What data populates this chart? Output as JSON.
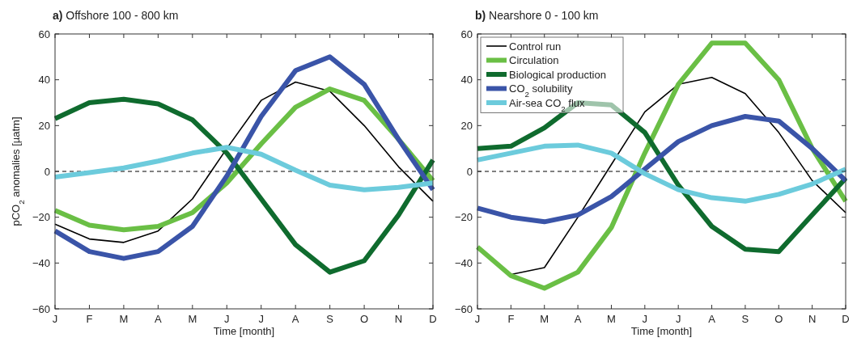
{
  "chart_data": [
    {
      "type": "line",
      "title": "a) Offshore 100 - 800 km",
      "xlabel": "Time [month]",
      "ylabel": "pCO$_{2}$ anomalies [µatm]",
      "categories": [
        "J",
        "F",
        "M",
        "A",
        "M",
        "J",
        "J",
        "A",
        "S",
        "O",
        "N",
        "D"
      ],
      "ylim": [
        -60,
        60
      ],
      "yticks": [
        -60,
        -40,
        -20,
        0,
        20,
        40,
        60
      ],
      "legend": false,
      "ref_lines": [
        {
          "axis": "y",
          "value": 0,
          "color": "#808080",
          "line_style": "dashed"
        }
      ],
      "series": [
        {
          "color": "#000000",
          "values": [
            -23,
            -29.5,
            -31,
            -26,
            -12,
            10,
            31,
            39,
            35,
            20,
            2,
            -13
          ]
        },
        {
          "color": "#6abf45",
          "values": [
            -17,
            -23.5,
            -25.5,
            -24,
            -18,
            -5,
            12,
            28,
            36,
            31,
            14,
            -4
          ]
        },
        {
          "color": "#0f6b2e",
          "values": [
            23,
            30,
            31.5,
            29.5,
            22.5,
            8,
            -12,
            -32,
            -44,
            -39,
            -19,
            5
          ]
        },
        {
          "color": "#3a54a8",
          "values": [
            -26,
            -35,
            -38,
            -35,
            -24,
            -2,
            24,
            44,
            50,
            38,
            14,
            -8
          ]
        },
        {
          "color": "#6ccbdc",
          "values": [
            -2.5,
            -0.5,
            1.5,
            4.5,
            8,
            10.5,
            7.5,
            0.5,
            -6,
            -8,
            -7,
            -5
          ]
        }
      ]
    },
    {
      "type": "line",
      "title": "b) Nearshore 0 - 100 km",
      "xlabel": "Time [month]",
      "categories": [
        "J",
        "F",
        "M",
        "A",
        "M",
        "J",
        "J",
        "A",
        "S",
        "O",
        "N",
        "D"
      ],
      "ylim": [
        -60,
        60
      ],
      "yticks": [
        -60,
        -40,
        -20,
        0,
        20,
        40,
        60
      ],
      "legend": "top left",
      "ref_lines": [
        {
          "axis": "y",
          "value": 0,
          "color": "#808080",
          "line_style": "dashed"
        }
      ],
      "series": [
        {
          "name": "Control run",
          "color": "#000000",
          "values": [
            -33,
            -45,
            -42,
            -20,
            3,
            26,
            38,
            41,
            34,
            17,
            -4,
            -18
          ]
        },
        {
          "name": "Circulation",
          "color": "#6abf45",
          "values": [
            -33,
            -45.5,
            -51,
            -44,
            -24.5,
            8,
            38,
            56,
            56,
            40,
            10,
            -13
          ]
        },
        {
          "name": "Biological production",
          "color": "#0f6b2e",
          "values": [
            10,
            11,
            19,
            30,
            29,
            17,
            -6,
            -24,
            -34,
            -35,
            -19,
            -3
          ]
        },
        {
          "name": "CO$_{2}$ solubility",
          "color": "#3a54a8",
          "values": [
            -16,
            -20,
            -22,
            -19,
            -11,
            1,
            13,
            20,
            24,
            22,
            10,
            -4
          ]
        },
        {
          "name": "Air-sea CO$_{2}$ flux",
          "color": "#6ccbdc",
          "values": [
            5,
            8,
            11,
            11.5,
            8,
            -1,
            -8,
            -11.5,
            -13,
            -10,
            -5.5,
            1
          ]
        }
      ]
    }
  ]
}
